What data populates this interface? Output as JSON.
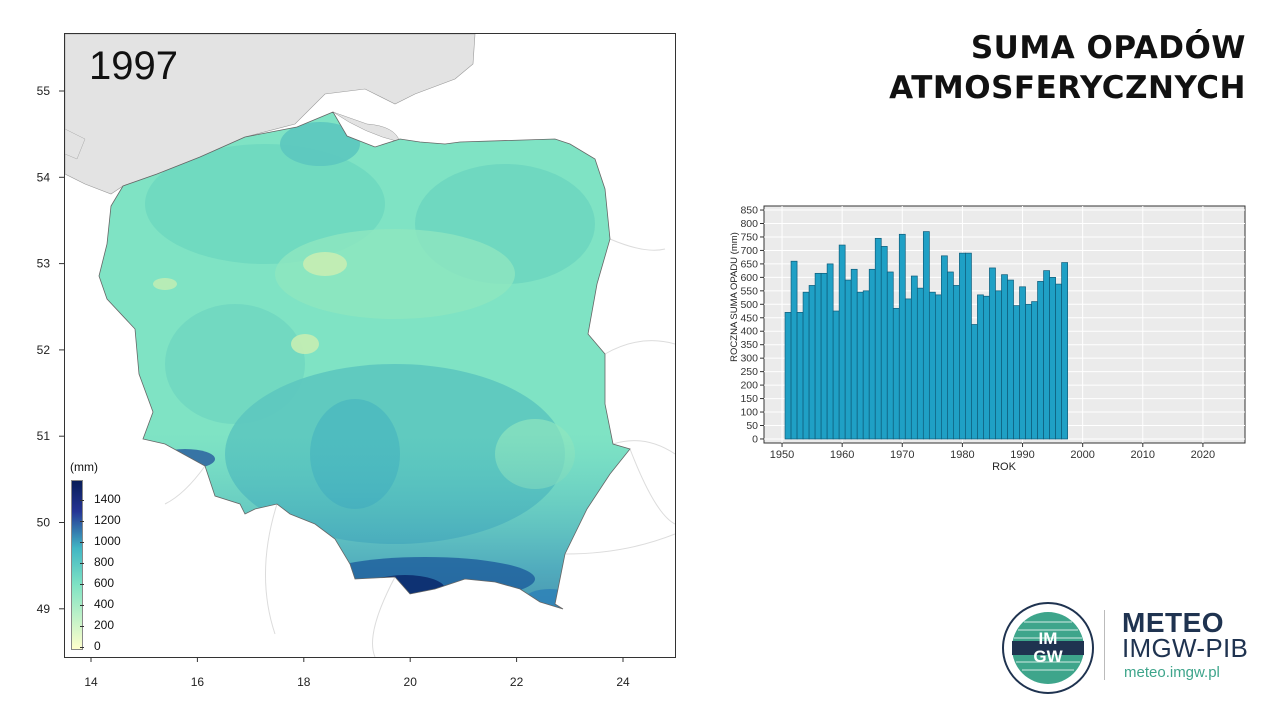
{
  "map": {
    "year": "1997",
    "legend_unit": "(mm)",
    "legend_values": [
      "1400",
      "1200",
      "1000",
      "800",
      "600",
      "400",
      "200",
      "0"
    ],
    "lat_ticks": [
      "55",
      "54",
      "53",
      "52",
      "51",
      "50",
      "49"
    ],
    "lon_ticks": [
      "14",
      "16",
      "18",
      "20",
      "22",
      "24"
    ],
    "colors": {
      "sea_land": "#e3e3e3",
      "low": "#ffffcc",
      "mid": "#7fe3c4",
      "high": "#41b6c4",
      "very_high": "#253494",
      "max": "#081d58"
    }
  },
  "title": {
    "line1": "SUMA OPADÓW",
    "line2": "ATMOSFERYCZNYCH"
  },
  "chart_data": {
    "type": "bar",
    "xlabel": "ROK",
    "ylabel": "ROCZNA SUMA OPADU (mm)",
    "xlim": [
      1947,
      2027
    ],
    "ylim": [
      -15,
      865
    ],
    "x_ticks": [
      1950,
      1960,
      1970,
      1980,
      1990,
      2000,
      2010,
      2020
    ],
    "y_ticks": [
      0,
      50,
      100,
      150,
      200,
      250,
      300,
      350,
      400,
      450,
      500,
      550,
      600,
      650,
      700,
      750,
      800,
      850
    ],
    "bar_color": "#1fa0c5",
    "grid": true,
    "x": [
      1951,
      1952,
      1953,
      1954,
      1955,
      1956,
      1957,
      1958,
      1959,
      1960,
      1961,
      1962,
      1963,
      1964,
      1965,
      1966,
      1967,
      1968,
      1969,
      1970,
      1971,
      1972,
      1973,
      1974,
      1975,
      1976,
      1977,
      1978,
      1979,
      1980,
      1981,
      1982,
      1983,
      1984,
      1985,
      1986,
      1987,
      1988,
      1989,
      1990,
      1991,
      1992,
      1993,
      1994,
      1995,
      1996,
      1997
    ],
    "values": [
      470,
      660,
      470,
      545,
      570,
      615,
      615,
      650,
      475,
      720,
      590,
      630,
      545,
      550,
      630,
      745,
      715,
      620,
      485,
      760,
      520,
      605,
      560,
      770,
      545,
      535,
      680,
      620,
      570,
      690,
      690,
      425,
      535,
      530,
      635,
      550,
      610,
      590,
      495,
      565,
      500,
      510,
      585,
      625,
      600,
      575,
      655
    ]
  },
  "brand": {
    "line1": "METEO",
    "line2": "IMGW-PIB",
    "url": "meteo.imgw.pl",
    "logo_text_top": "IM",
    "logo_text_bottom": "GW"
  }
}
